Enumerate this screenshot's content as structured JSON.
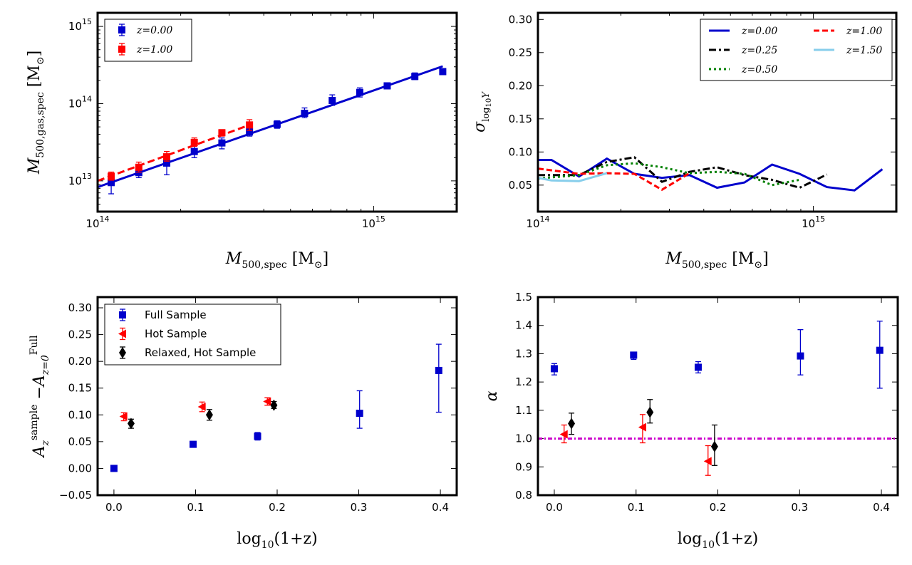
{
  "chart_data": [
    {
      "id": "p1",
      "type": "scatter",
      "x_scale": "log",
      "y_scale": "log",
      "xlim": [
        100000000000000.0,
        2000000000000000.0
      ],
      "ylim": [
        4000000000000.0,
        1500000000000000.0
      ],
      "xticks": [
        {
          "v": 100000000000000.0,
          "base": "10",
          "exp": "14"
        },
        {
          "v": 1000000000000000.0,
          "base": "10",
          "exp": "15"
        }
      ],
      "yticks": [
        {
          "v": 10000000000000.0,
          "base": "10",
          "exp": "13"
        },
        {
          "v": 100000000000000.0,
          "base": "10",
          "exp": "14"
        },
        {
          "v": 1000000000000000.0,
          "base": "10",
          "exp": "15"
        }
      ],
      "xlabel": {
        "main": "M",
        "sub": "500,spec",
        "unit": "[M",
        "unit_sub": "⊙",
        "close": "]"
      },
      "ylabel": {
        "main": "M",
        "sub": "500,gas,spec",
        "unit": "[M",
        "unit_sub": "⊙",
        "close": "]"
      },
      "legend": {
        "position": "top-left",
        "entries": [
          {
            "label": "z=0.00",
            "color": "#0000cc"
          },
          {
            "label": "z=1.00",
            "color": "#ff0000"
          }
        ]
      },
      "series": [
        {
          "name": "z=0.00",
          "color": "#0000cc",
          "points": [
            [
              112000000000000.0,
              9500000000000.0,
              6800000000000.0,
              12000000000000.0
            ],
            [
              141000000000000.0,
              12800000000000.0,
              11000000000000.0,
              15000000000000.0
            ],
            [
              178000000000000.0,
              17000000000000.0,
              12000000000000.0,
              20000000000000.0
            ],
            [
              224000000000000.0,
              24000000000000.0,
              20000000000000.0,
              28000000000000.0
            ],
            [
              282000000000000.0,
              31000000000000.0,
              26000000000000.0,
              36000000000000.0
            ],
            [
              355000000000000.0,
              43000000000000.0,
              38000000000000.0,
              48000000000000.0
            ],
            [
              447000000000000.0,
              54000000000000.0,
              48000000000000.0,
              60000000000000.0
            ],
            [
              562000000000000.0,
              75000000000000.0,
              66000000000000.0,
              88000000000000.0
            ],
            [
              708000000000000.0,
              110000000000000.0,
              95000000000000.0,
              130000000000000.0
            ],
            [
              891000000000000.0,
              140000000000000.0,
              122000000000000.0,
              160000000000000.0
            ],
            [
              1120000000000000.0,
              170000000000000.0,
              155000000000000.0,
              185000000000000.0
            ],
            [
              1410000000000000.0,
              225000000000000.0,
              205000000000000.0,
              250000000000000.0
            ],
            [
              1780000000000000.0,
              260000000000000.0,
              240000000000000.0,
              280000000000000.0
            ]
          ],
          "fit": {
            "x0": 100000000000000.0,
            "y0": 8300000000000.0,
            "x1": 1780000000000000.0,
            "y1": 305000000000000.0,
            "style": "solid"
          }
        },
        {
          "name": "z=1.00",
          "color": "#ff0000",
          "points": [
            [
              112000000000000.0,
              11500000000000.0,
              10200000000000.0,
              13000000000000.0
            ],
            [
              141000000000000.0,
              15000000000000.0,
              13000000000000.0,
              17500000000000.0
            ],
            [
              178000000000000.0,
              20500000000000.0,
              18000000000000.0,
              24000000000000.0
            ],
            [
              224000000000000.0,
              31500000000000.0,
              28000000000000.0,
              36000000000000.0
            ],
            [
              282000000000000.0,
              42000000000000.0,
              38000000000000.0,
              46000000000000.0
            ],
            [
              355000000000000.0,
              53000000000000.0,
              45000000000000.0,
              62000000000000.0
            ]
          ],
          "fit": {
            "x0": 100000000000000.0,
            "y0": 10000000000000.0,
            "x1": 355000000000000.0,
            "y1": 53000000000000.0,
            "style": "dashed"
          }
        }
      ]
    },
    {
      "id": "p2",
      "type": "line",
      "x_scale": "log",
      "y_scale": "linear",
      "xlim": [
        100000000000000.0,
        2000000000000000.0
      ],
      "ylim": [
        0.01,
        0.31
      ],
      "xticks": [
        {
          "v": 100000000000000.0,
          "base": "10",
          "exp": "14"
        },
        {
          "v": 1000000000000000.0,
          "base": "10",
          "exp": "15"
        }
      ],
      "yticks": [
        "0.05",
        "0.10",
        "0.15",
        "0.20",
        "0.25",
        "0.30"
      ],
      "xlabel": {
        "main": "M",
        "sub": "500,spec",
        "unit": "[M",
        "unit_sub": "⊙",
        "close": "]"
      },
      "ylabel": {
        "main": "σ",
        "sub": "log",
        "subsub": "10",
        "tail": "Y"
      },
      "legend": {
        "position": "top-right",
        "entries": [
          {
            "label": "z=0.00",
            "color": "#0000cc",
            "dash": ""
          },
          {
            "label": "z=1.00",
            "color": "#ff0000",
            "dash": "8,4"
          },
          {
            "label": "z=0.25",
            "color": "#000000",
            "dash": "10,4,3,4"
          },
          {
            "label": "z=1.50",
            "color": "#87ceeb",
            "dash": ""
          },
          {
            "label": "z=0.50",
            "color": "#008000",
            "dash": "3,4"
          }
        ]
      },
      "series": [
        {
          "name": "z=0.00",
          "color": "#0000cc",
          "dash": "",
          "x": [
            100000000000000.0,
            112000000000000.0,
            141000000000000.0,
            178000000000000.0,
            224000000000000.0,
            282000000000000.0,
            355000000000000.0,
            447000000000000.0,
            562000000000000.0,
            708000000000000.0,
            891000000000000.0,
            1120000000000000.0,
            1410000000000000.0,
            1780000000000000.0
          ],
          "y": [
            0.088,
            0.088,
            0.063,
            0.09,
            0.067,
            0.061,
            0.065,
            0.046,
            0.054,
            0.081,
            0.067,
            0.047,
            0.042,
            0.074
          ]
        },
        {
          "name": "z=0.25",
          "color": "#000000",
          "dash": "10,4,3,4",
          "x": [
            100000000000000.0,
            141000000000000.0,
            178000000000000.0,
            224000000000000.0,
            282000000000000.0,
            355000000000000.0,
            447000000000000.0,
            562000000000000.0,
            708000000000000.0,
            891000000000000.0,
            1120000000000000.0
          ],
          "y": [
            0.065,
            0.065,
            0.085,
            0.092,
            0.055,
            0.07,
            0.077,
            0.065,
            0.058,
            0.046,
            0.066
          ]
        },
        {
          "name": "z=0.50",
          "color": "#008000",
          "dash": "3,4",
          "x": [
            100000000000000.0,
            141000000000000.0,
            178000000000000.0,
            224000000000000.0,
            282000000000000.0,
            355000000000000.0,
            447000000000000.0,
            562000000000000.0,
            708000000000000.0,
            891000000000000.0
          ],
          "y": [
            0.06,
            0.065,
            0.08,
            0.083,
            0.077,
            0.068,
            0.07,
            0.067,
            0.05,
            0.058
          ]
        },
        {
          "name": "z=1.00",
          "color": "#ff0000",
          "dash": "8,4",
          "x": [
            100000000000000.0,
            141000000000000.0,
            178000000000000.0,
            224000000000000.0,
            282000000000000.0,
            355000000000000.0
          ],
          "y": [
            0.075,
            0.067,
            0.068,
            0.067,
            0.043,
            0.068
          ]
        },
        {
          "name": "z=1.50",
          "color": "#87ceeb",
          "dash": "",
          "x": [
            100000000000000.0,
            112000000000000.0,
            141000000000000.0,
            178000000000000.0
          ],
          "y": [
            0.061,
            0.057,
            0.056,
            0.068
          ]
        }
      ]
    },
    {
      "id": "p3",
      "type": "scatter",
      "x_scale": "linear",
      "y_scale": "linear",
      "xlim": [
        -0.02,
        0.42
      ],
      "ylim": [
        -0.05,
        0.32
      ],
      "xticks": [
        "0.0",
        "0.1",
        "0.2",
        "0.3",
        "0.4"
      ],
      "yticks": [
        "−0.05",
        "0.00",
        "0.05",
        "0.10",
        "0.15",
        "0.20",
        "0.25",
        "0.30"
      ],
      "xlabel": {
        "pre": "log",
        "sub": "10",
        "post": "(1+z)"
      },
      "ylabel": {
        "main": "A",
        "sub1": "z",
        "sup1": "sample",
        "minus": "−",
        "main2": "A",
        "sub2": "z=0",
        "sup2": "Full"
      },
      "legend": {
        "position": "top-left",
        "entries": [
          {
            "label": "Full Sample",
            "color": "#0000cc",
            "marker": "square"
          },
          {
            "label": "Hot Sample",
            "color": "#ff0000",
            "marker": "triangle-left"
          },
          {
            "label": "Relaxed, Hot Sample",
            "color": "#000000",
            "marker": "diamond"
          }
        ]
      },
      "series": [
        {
          "name": "Full Sample",
          "color": "#0000cc",
          "marker": "square",
          "points": [
            [
              0.0,
              0.0,
              0.0,
              0.0
            ],
            [
              0.097,
              0.045,
              0.045,
              0.045
            ],
            [
              0.176,
              0.06,
              0.053,
              0.067
            ],
            [
              0.301,
              0.103,
              0.075,
              0.145
            ],
            [
              0.398,
              0.183,
              0.105,
              0.232
            ]
          ]
        },
        {
          "name": "Hot Sample",
          "color": "#ff0000",
          "marker": "triangle-left",
          "points": [
            [
              0.012,
              0.097,
              0.089,
              0.104
            ],
            [
              0.108,
              0.115,
              0.106,
              0.124
            ],
            [
              0.188,
              0.125,
              0.118,
              0.132
            ]
          ]
        },
        {
          "name": "Relaxed, Hot Sample",
          "color": "#000000",
          "marker": "diamond",
          "points": [
            [
              0.021,
              0.084,
              0.075,
              0.092
            ],
            [
              0.117,
              0.1,
              0.09,
              0.11
            ],
            [
              0.196,
              0.118,
              0.112,
              0.125
            ]
          ]
        }
      ]
    },
    {
      "id": "p4",
      "type": "scatter",
      "x_scale": "linear",
      "y_scale": "linear",
      "xlim": [
        -0.02,
        0.42
      ],
      "ylim": [
        0.8,
        1.5
      ],
      "xticks": [
        "0.0",
        "0.1",
        "0.2",
        "0.3",
        "0.4"
      ],
      "yticks": [
        "0.8",
        "0.9",
        "1.0",
        "1.1",
        "1.2",
        "1.3",
        "1.4",
        "1.5"
      ],
      "xlabel": {
        "pre": "log",
        "sub": "10",
        "post": "(1+z)"
      },
      "ylabel": {
        "main": "α"
      },
      "hline": {
        "y": 1.0,
        "color": "#cc00cc",
        "dash": "6,3,2,3"
      },
      "series": [
        {
          "name": "Full Sample",
          "color": "#0000cc",
          "marker": "square",
          "points": [
            [
              0.0,
              1.247,
              1.225,
              1.265
            ],
            [
              0.097,
              1.295,
              1.28,
              1.305
            ],
            [
              0.176,
              1.252,
              1.232,
              1.272
            ],
            [
              0.301,
              1.292,
              1.225,
              1.385
            ],
            [
              0.398,
              1.312,
              1.178,
              1.415
            ]
          ]
        },
        {
          "name": "Hot Sample",
          "color": "#ff0000",
          "marker": "triangle-left",
          "points": [
            [
              0.012,
              1.015,
              0.985,
              1.048
            ],
            [
              0.108,
              1.04,
              0.985,
              1.085
            ],
            [
              0.188,
              0.92,
              0.87,
              0.975
            ]
          ]
        },
        {
          "name": "Relaxed, Hot Sample",
          "color": "#000000",
          "marker": "diamond",
          "points": [
            [
              0.021,
              1.053,
              1.015,
              1.09
            ],
            [
              0.117,
              1.093,
              1.055,
              1.138
            ],
            [
              0.196,
              0.972,
              0.905,
              1.048
            ]
          ]
        }
      ]
    }
  ]
}
